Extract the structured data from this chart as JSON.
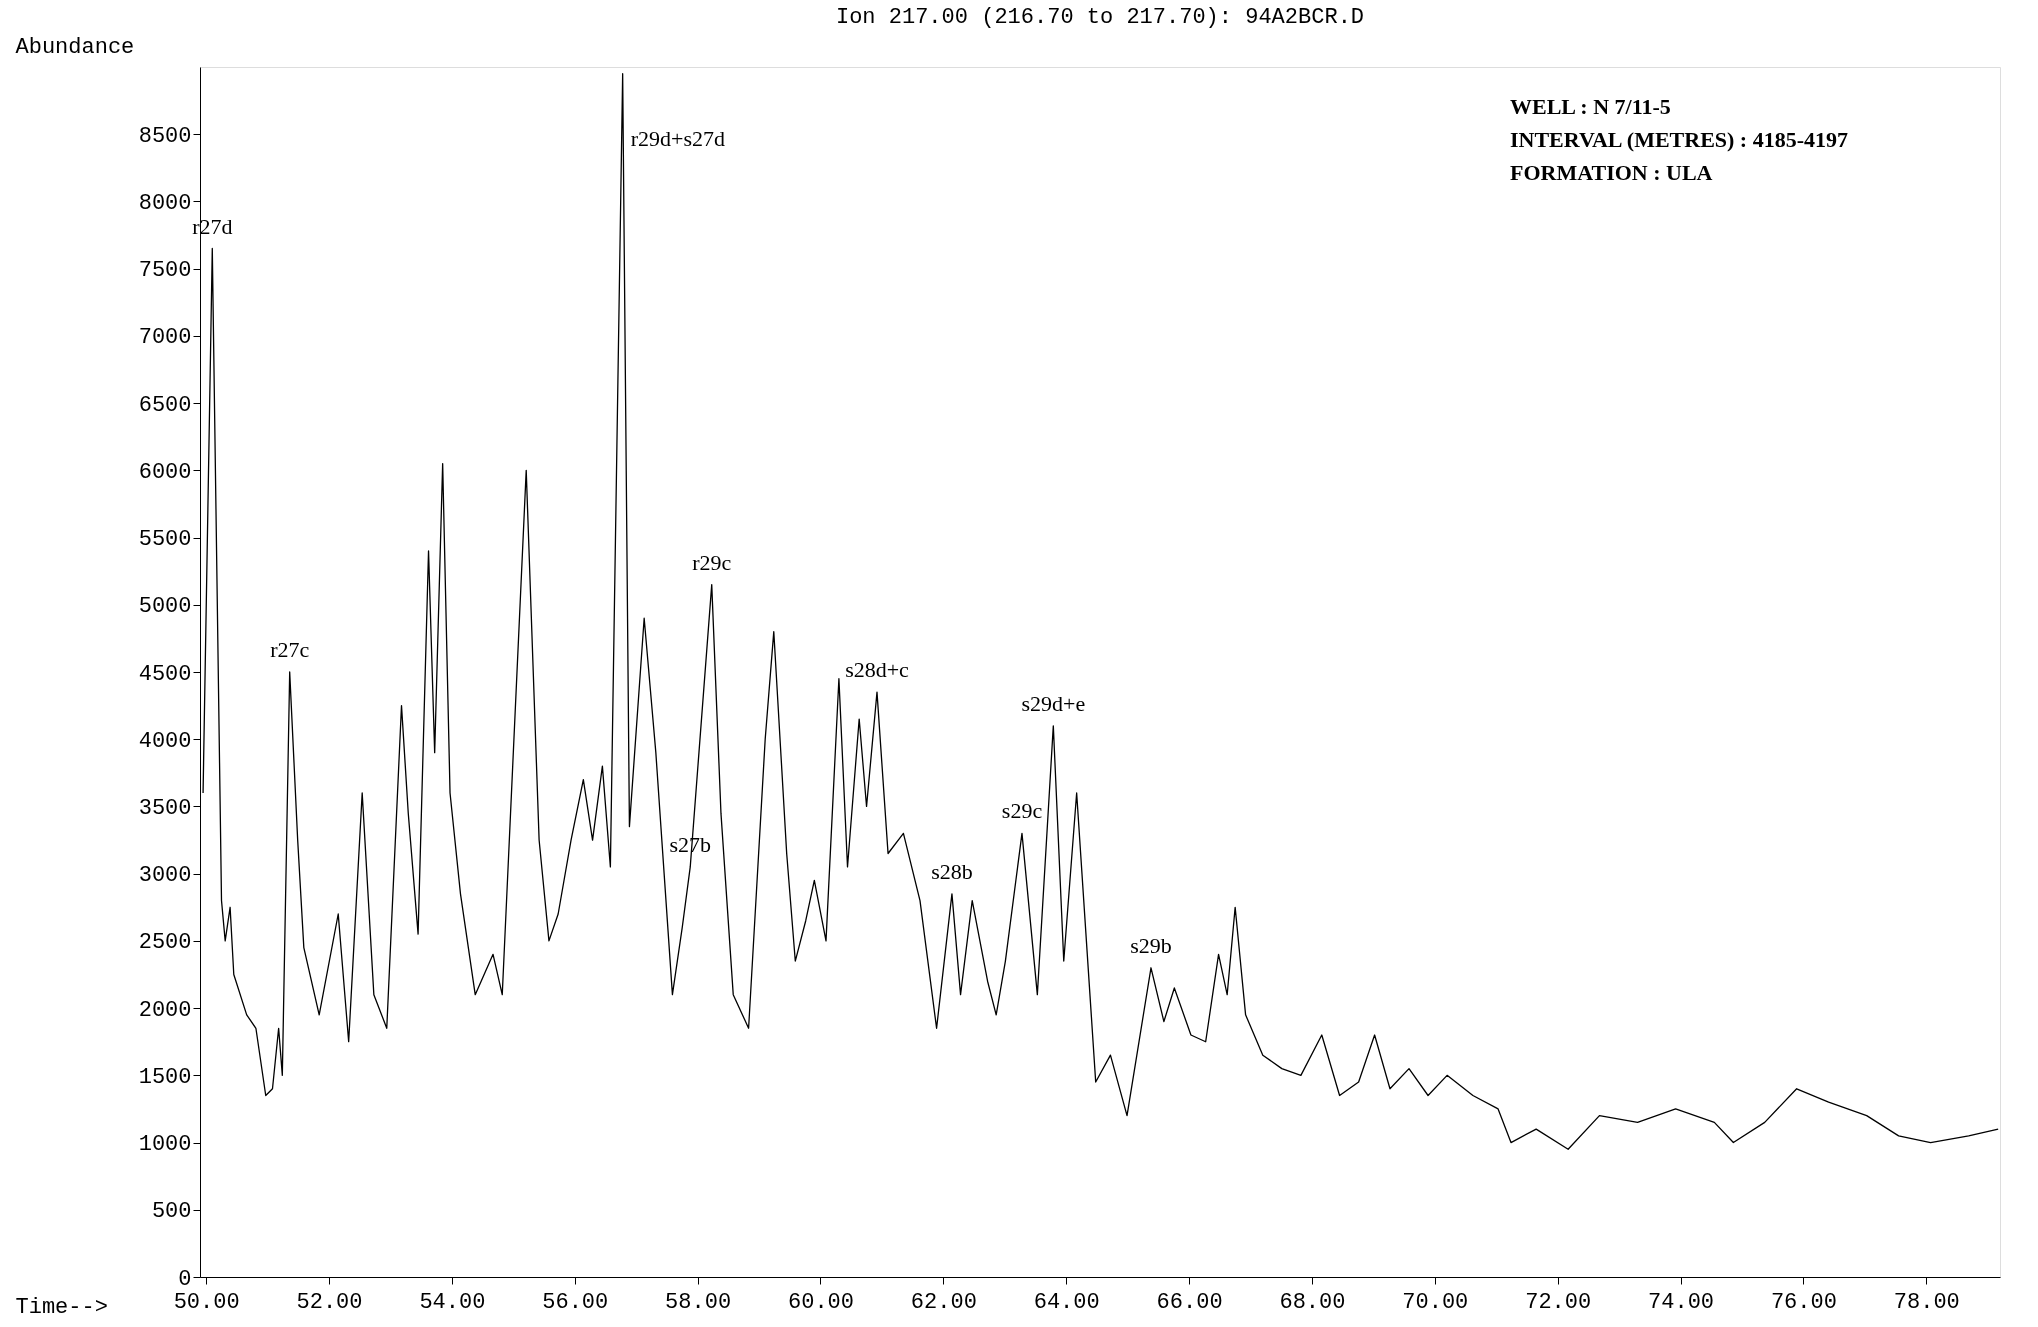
{
  "chart_data": {
    "type": "line",
    "title": "Ion 217.00 (216.70 to 217.70): 94A2BCR.D",
    "xlabel": "Time-->",
    "ylabel": "Abundance",
    "xlim": [
      49.9,
      79.2
    ],
    "ylim": [
      0,
      9000
    ],
    "xticks": [
      {
        "value": 50,
        "label": "50.00"
      },
      {
        "value": 52,
        "label": "52.00"
      },
      {
        "value": 54,
        "label": "54.00"
      },
      {
        "value": 56,
        "label": "56.00"
      },
      {
        "value": 58,
        "label": "58.00"
      },
      {
        "value": 60,
        "label": "60.00"
      },
      {
        "value": 62,
        "label": "62.00"
      },
      {
        "value": 64,
        "label": "64.00"
      },
      {
        "value": 66,
        "label": "66.00"
      },
      {
        "value": 68,
        "label": "68.00"
      },
      {
        "value": 70,
        "label": "70.00"
      },
      {
        "value": 72,
        "label": "72.00"
      },
      {
        "value": 74,
        "label": "74.00"
      },
      {
        "value": 76,
        "label": "76.00"
      },
      {
        "value": 78,
        "label": "78.00"
      }
    ],
    "yticks": [
      0,
      500,
      1000,
      1500,
      2000,
      2500,
      3000,
      3500,
      4000,
      4500,
      5000,
      5500,
      6000,
      6500,
      7000,
      7500,
      8000,
      8500
    ],
    "grid": false,
    "series": [
      {
        "color": "#000000",
        "x": [
          49.95,
          50.1,
          50.25,
          50.31,
          50.39,
          50.45,
          50.66,
          50.81,
          50.97,
          51.08,
          51.18,
          51.24,
          51.36,
          51.49,
          51.59,
          51.84,
          52.15,
          52.32,
          52.54,
          52.73,
          52.94,
          53.18,
          53.29,
          53.45,
          53.62,
          53.72,
          53.85,
          53.97,
          54.14,
          54.38,
          54.67,
          54.82,
          55.21,
          55.42,
          55.58,
          55.73,
          55.94,
          56.14,
          56.29,
          56.45,
          56.58,
          56.78,
          56.89,
          57.13,
          57.32,
          57.59,
          57.75,
          57.88,
          58.23,
          58.38,
          58.58,
          58.83,
          59.1,
          59.24,
          59.45,
          59.59,
          59.76,
          59.9,
          60.09,
          60.3,
          60.44,
          60.63,
          60.75,
          60.92,
          61.1,
          61.35,
          61.62,
          61.89,
          62.14,
          62.28,
          62.47,
          62.72,
          62.86,
          63.01,
          63.28,
          63.53,
          63.79,
          63.96,
          64.17,
          64.48,
          64.72,
          64.99,
          65.38,
          65.59,
          65.76,
          66.03,
          66.27,
          66.48,
          66.62,
          66.75,
          66.92,
          67.2,
          67.51,
          67.82,
          68.16,
          68.45,
          68.76,
          69.02,
          69.27,
          69.58,
          69.89,
          70.2,
          70.62,
          71.03,
          71.24,
          71.65,
          72.17,
          72.68,
          73.3,
          73.92,
          74.55,
          74.86,
          75.37,
          75.89,
          76.41,
          77.03,
          77.55,
          78.07,
          78.69,
          79.17
        ],
        "values": [
          3600,
          7650,
          2800,
          2500,
          2750,
          2250,
          1950,
          1850,
          1350,
          1400,
          1850,
          1500,
          4500,
          3250,
          2450,
          1950,
          2700,
          1750,
          3600,
          2100,
          1850,
          4250,
          3450,
          2550,
          5400,
          3900,
          6050,
          3600,
          2850,
          2100,
          2400,
          2100,
          6000,
          3250,
          2500,
          2700,
          3250,
          3700,
          3250,
          3800,
          3050,
          8950,
          3350,
          4900,
          3900,
          2100,
          2600,
          3050,
          5150,
          3450,
          2100,
          1850,
          4000,
          4800,
          3150,
          2350,
          2650,
          2950,
          2500,
          4450,
          3050,
          4150,
          3500,
          4350,
          3150,
          3300,
          2800,
          1850,
          2850,
          2100,
          2800,
          2200,
          1950,
          2350,
          3300,
          2100,
          4100,
          2350,
          3600,
          1450,
          1650,
          1200,
          2300,
          1900,
          2150,
          1800,
          1750,
          2400,
          2100,
          2750,
          1950,
          1650,
          1550,
          1500,
          1800,
          1350,
          1450,
          1800,
          1400,
          1550,
          1350,
          1500,
          1350,
          1250,
          1000,
          1100,
          950,
          1200,
          1150,
          1250,
          1150,
          1000,
          1150,
          1400,
          1300,
          1200,
          1050,
          1000,
          1050,
          1100
        ]
      }
    ],
    "annotations": [
      {
        "text": "r27d",
        "x": 50.1,
        "y": 7650
      },
      {
        "text": "r27c",
        "x": 51.36,
        "y": 4500
      },
      {
        "text": "r29d+s27d",
        "x": 56.78,
        "y": 8950
      },
      {
        "text": "s27b",
        "x": 57.88,
        "y": 3050
      },
      {
        "text": "r29c",
        "x": 58.23,
        "y": 5150
      },
      {
        "text": "s28d+c",
        "x": 60.92,
        "y": 4350
      },
      {
        "text": "s28b",
        "x": 62.14,
        "y": 2850
      },
      {
        "text": "s29c",
        "x": 63.28,
        "y": 3300
      },
      {
        "text": "s29d+e",
        "x": 63.79,
        "y": 4100
      },
      {
        "text": "s29b",
        "x": 65.38,
        "y": 2300
      },
      "WELL : N 7/11-5",
      "INTERVAL (METRES) : 4185-4197",
      "FORMATION : ULA"
    ]
  }
}
